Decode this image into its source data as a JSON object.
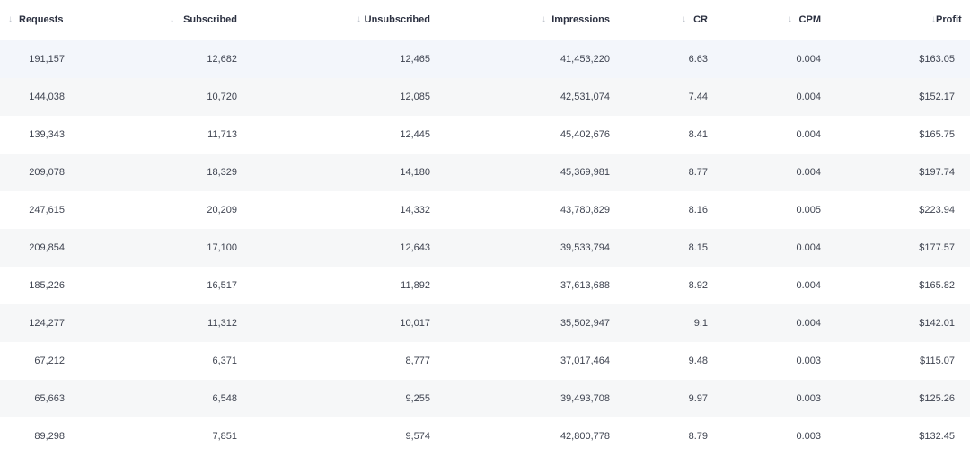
{
  "columns": [
    {
      "label": "Requests",
      "sort_icon": "arrow-down-icon"
    },
    {
      "label": "Subscribed",
      "sort_icon": "arrow-down-icon"
    },
    {
      "label": "Unsubscribed",
      "sort_icon": "arrow-down-icon"
    },
    {
      "label": "Impressions",
      "sort_icon": "arrow-down-icon"
    },
    {
      "label": "CR",
      "sort_icon": "arrow-down-icon"
    },
    {
      "label": "CPM",
      "sort_icon": "arrow-down-icon"
    },
    {
      "label": "Profit",
      "sort_icon": "arrow-down-icon"
    }
  ],
  "rows": [
    [
      "191,157",
      "12,682",
      "12,465",
      "41,453,220",
      "6.63",
      "0.004",
      "$163.05"
    ],
    [
      "144,038",
      "10,720",
      "12,085",
      "42,531,074",
      "7.44",
      "0.004",
      "$152.17"
    ],
    [
      "139,343",
      "11,713",
      "12,445",
      "45,402,676",
      "8.41",
      "0.004",
      "$165.75"
    ],
    [
      "209,078",
      "18,329",
      "14,180",
      "45,369,981",
      "8.77",
      "0.004",
      "$197.74"
    ],
    [
      "247,615",
      "20,209",
      "14,332",
      "43,780,829",
      "8.16",
      "0.005",
      "$223.94"
    ],
    [
      "209,854",
      "17,100",
      "12,643",
      "39,533,794",
      "8.15",
      "0.004",
      "$177.57"
    ],
    [
      "185,226",
      "16,517",
      "11,892",
      "37,613,688",
      "8.92",
      "0.004",
      "$165.82"
    ],
    [
      "124,277",
      "11,312",
      "10,017",
      "35,502,947",
      "9.1",
      "0.004",
      "$142.01"
    ],
    [
      "67,212",
      "6,371",
      "8,777",
      "37,017,464",
      "9.48",
      "0.003",
      "$115.07"
    ],
    [
      "65,663",
      "6,548",
      "9,255",
      "39,493,708",
      "9.97",
      "0.003",
      "$125.26"
    ],
    [
      "89,298",
      "7,851",
      "9,574",
      "42,800,778",
      "8.79",
      "0.003",
      "$132.45"
    ]
  ],
  "colors": {
    "header_text": "#2b3040",
    "cell_text": "#3f4451",
    "row_alt": "#f6f7f8",
    "row_selected": "#f3f6fb",
    "sort_icon": "#b9bec8"
  }
}
